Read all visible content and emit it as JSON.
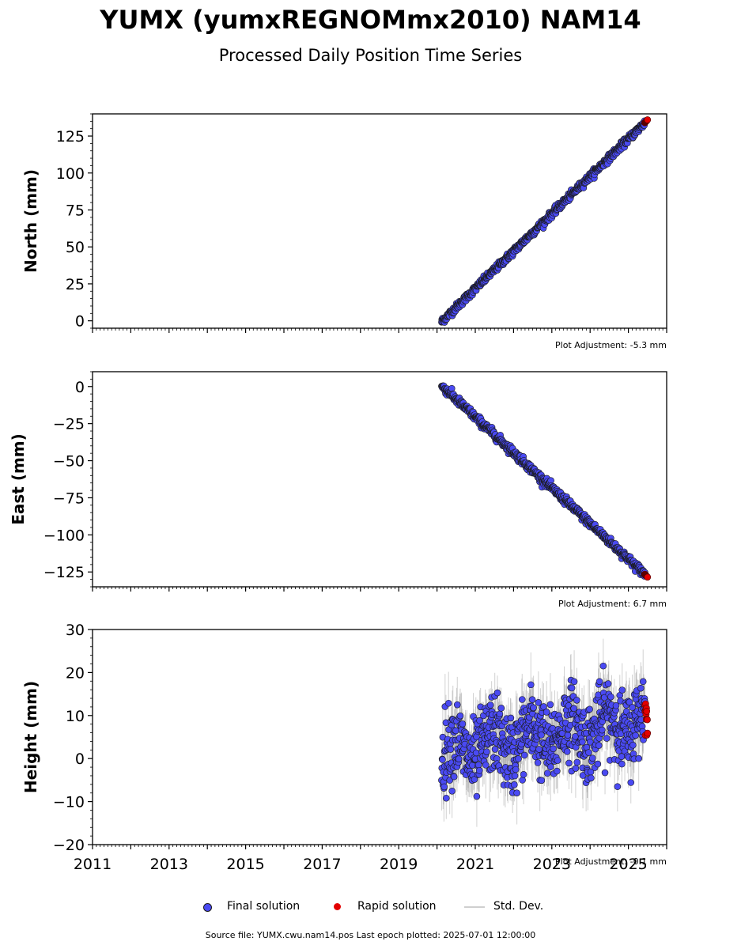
{
  "title": "YUMX (yumxREGNOMmx2010) NAM14",
  "subtitle": "Processed Daily Position Time Series",
  "source_note": "Source file: YUMX.cwu.nam14.pos  Last epoch plotted: 2025-07-01 12:00:00",
  "legend": {
    "final_label": "Final solution",
    "rapid_label": "Rapid solution",
    "std_label": "Std. Dev."
  },
  "colors": {
    "final": "#4a4af2",
    "rapid": "#e30000",
    "std": "#999999",
    "marker_edge": "#1a1a1a"
  },
  "chart_data": [
    {
      "type": "scatter",
      "ylabel": "North (mm)",
      "adjustment": "Plot Adjustment: -5.3 mm",
      "xlim": [
        2011.0,
        2026.0
      ],
      "ylim": [
        -5,
        140
      ],
      "yticks": [
        0,
        25,
        50,
        75,
        100,
        125
      ],
      "final_series": {
        "x_start": 2020.12,
        "x_end": 2025.43,
        "y_start": -0.5,
        "y_end": 134,
        "noise": 1.2
      },
      "rapid_series": {
        "x_start": 2025.43,
        "x_end": 2025.5,
        "y_start": 134,
        "y_end": 136
      },
      "show_std": false
    },
    {
      "type": "scatter",
      "ylabel": "East (mm)",
      "adjustment": "Plot Adjustment: 6.7 mm",
      "xlim": [
        2011.0,
        2026.0
      ],
      "ylim": [
        -135,
        10
      ],
      "yticks": [
        0,
        -25,
        -50,
        -75,
        -100,
        -125
      ],
      "final_series": {
        "x_start": 2020.12,
        "x_end": 2025.43,
        "y_start": 0.5,
        "y_end": -126.5,
        "noise": 1.4
      },
      "rapid_series": {
        "x_start": 2025.43,
        "x_end": 2025.5,
        "y_start": -126.5,
        "y_end": -128.5
      },
      "show_std": false
    },
    {
      "type": "scatter",
      "ylabel": "Height (mm)",
      "adjustment": "Plot Adjustment: -0.1 mm",
      "xlim": [
        2011.0,
        2026.0
      ],
      "ylim": [
        -20,
        30
      ],
      "yticks": [
        30,
        20,
        10,
        0,
        -10,
        -20
      ],
      "xticks": [
        2011,
        2013,
        2015,
        2017,
        2019,
        2021,
        2023,
        2025
      ],
      "final_series": {
        "x_start": 2020.12,
        "x_end": 2025.43,
        "y_start": 1,
        "y_end": 9,
        "noise": 4.5,
        "seasonal_amp": 3
      },
      "rapid_series": {
        "x_start": 2025.43,
        "x_end": 2025.5,
        "y_start": 5,
        "y_end": 13
      },
      "show_std": true
    }
  ]
}
